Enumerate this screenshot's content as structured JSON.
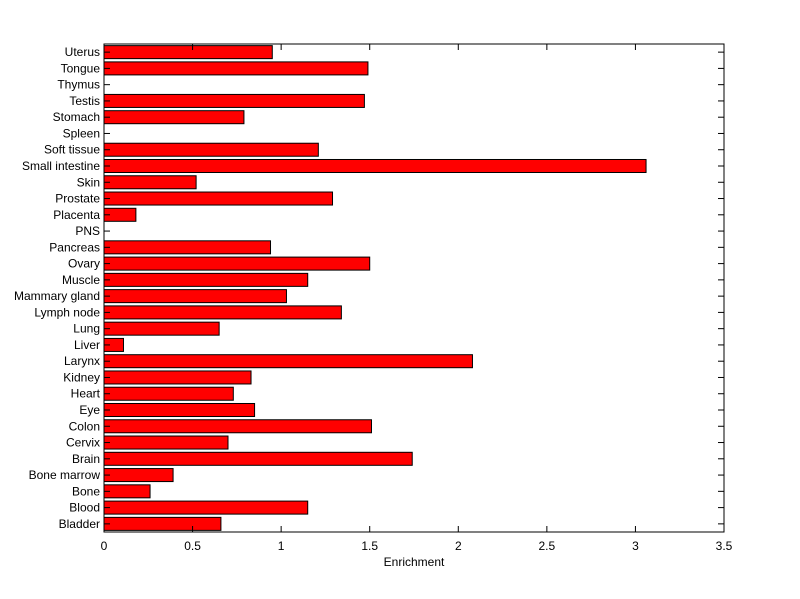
{
  "chart_data": {
    "type": "bar",
    "orientation": "horizontal",
    "title": "",
    "xlabel": "Enrichment",
    "ylabel": "",
    "xlim": [
      0,
      3.5
    ],
    "xticks": [
      "0",
      "0.5",
      "1",
      "1.5",
      "2",
      "2.5",
      "3",
      "3.5"
    ],
    "grid": false,
    "bar_color": "#ff0000",
    "bar_edge_color": "#000000",
    "categories": [
      "Uterus",
      "Tongue",
      "Thymus",
      "Testis",
      "Stomach",
      "Spleen",
      "Soft tissue",
      "Small intestine",
      "Skin",
      "Prostate",
      "Placenta",
      "PNS",
      "Pancreas",
      "Ovary",
      "Muscle",
      "Mammary gland",
      "Lymph node",
      "Lung",
      "Liver",
      "Larynx",
      "Kidney",
      "Heart",
      "Eye",
      "Colon",
      "Cervix",
      "Brain",
      "Bone marrow",
      "Bone",
      "Blood",
      "Bladder"
    ],
    "values": [
      0.95,
      1.49,
      0.0,
      1.47,
      0.79,
      0.0,
      1.21,
      3.06,
      0.52,
      1.29,
      0.18,
      0.0,
      0.94,
      1.5,
      1.15,
      1.03,
      1.34,
      0.65,
      0.11,
      2.08,
      0.83,
      0.73,
      0.85,
      1.51,
      0.7,
      1.74,
      0.39,
      0.26,
      1.15,
      0.66
    ]
  }
}
